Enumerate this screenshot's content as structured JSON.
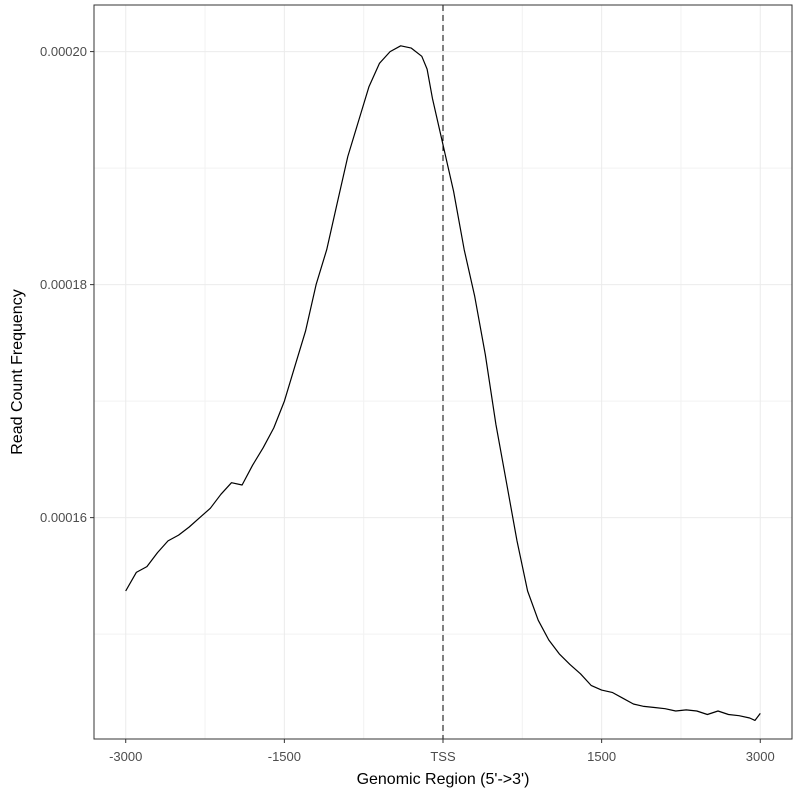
{
  "chart_data": {
    "type": "line",
    "xlabel": "Genomic Region (5'->3')",
    "ylabel": "Read Count Frequency",
    "xlim": [
      -3300,
      3300
    ],
    "ylim": [
      0.000141,
      0.000204
    ],
    "x_ticks": [
      {
        "value": -3000,
        "label": "-3000"
      },
      {
        "value": -1500,
        "label": "-1500"
      },
      {
        "value": 0,
        "label": "TSS"
      },
      {
        "value": 1500,
        "label": "1500"
      },
      {
        "value": 3000,
        "label": "3000"
      }
    ],
    "y_ticks": [
      {
        "value": 0.00016,
        "label": "0.00016"
      },
      {
        "value": 0.00018,
        "label": "0.00018"
      },
      {
        "value": 0.0002,
        "label": "0.00020"
      }
    ],
    "grid": true,
    "reference_line": {
      "x": 0,
      "style": "dashed"
    },
    "series": [
      {
        "color": "#000000",
        "x": [
          -3000,
          -2900,
          -2800,
          -2700,
          -2600,
          -2500,
          -2400,
          -2300,
          -2200,
          -2100,
          -2000,
          -1900,
          -1800,
          -1700,
          -1600,
          -1500,
          -1400,
          -1300,
          -1200,
          -1100,
          -1000,
          -900,
          -800,
          -700,
          -600,
          -500,
          -400,
          -300,
          -200,
          -150,
          -100,
          -50,
          0,
          50,
          100,
          200,
          300,
          400,
          500,
          600,
          700,
          800,
          900,
          1000,
          1100,
          1200,
          1300,
          1400,
          1500,
          1600,
          1700,
          1800,
          1900,
          2000,
          2100,
          2200,
          2300,
          2400,
          2500,
          2600,
          2700,
          2800,
          2900,
          2950,
          3000
        ],
        "y": [
          0.0001537,
          0.0001553,
          0.0001558,
          0.000157,
          0.000158,
          0.0001585,
          0.0001592,
          0.00016,
          0.0001608,
          0.000162,
          0.000163,
          0.0001628,
          0.0001645,
          0.000166,
          0.0001677,
          0.00017,
          0.000173,
          0.000176,
          0.00018,
          0.000183,
          0.000187,
          0.000191,
          0.000194,
          0.000197,
          0.000199,
          0.0002,
          0.0002005,
          0.0002003,
          0.0001996,
          0.0001985,
          0.000196,
          0.000194,
          0.000192,
          0.00019,
          0.000188,
          0.000183,
          0.000179,
          0.000174,
          0.000168,
          0.000163,
          0.000158,
          0.0001537,
          0.0001512,
          0.0001495,
          0.0001483,
          0.0001474,
          0.0001466,
          0.0001456,
          0.0001452,
          0.000145,
          0.0001445,
          0.000144,
          0.0001438,
          0.0001437,
          0.0001436,
          0.0001434,
          0.0001435,
          0.0001434,
          0.0001431,
          0.0001434,
          0.0001431,
          0.000143,
          0.0001428,
          0.0001426,
          0.0001432
        ]
      }
    ]
  }
}
